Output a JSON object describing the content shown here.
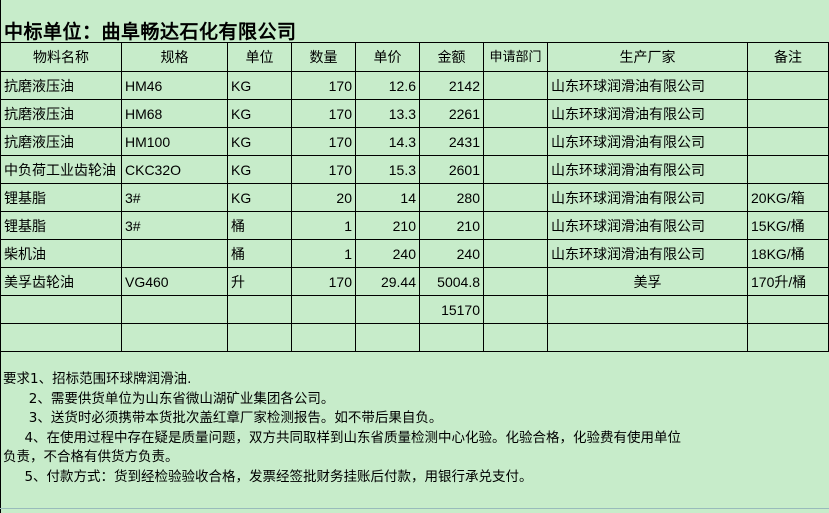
{
  "title": "中标单位：曲阜畅达石化有限公司",
  "headers": [
    "物料名称",
    "规格",
    "单位",
    "数量",
    "单价",
    "金额",
    "申请部门",
    "生产厂家",
    "备注"
  ],
  "rows": [
    [
      "抗磨液压油",
      "HM46",
      "KG",
      "170",
      "12.6",
      "2142",
      "",
      "山东环球润滑油有限公司",
      ""
    ],
    [
      "抗磨液压油",
      "HM68",
      "KG",
      "170",
      "13.3",
      "2261",
      "",
      "山东环球润滑油有限公司",
      ""
    ],
    [
      "抗磨液压油",
      "HM100",
      "KG",
      "170",
      "14.3",
      "2431",
      "",
      "山东环球润滑油有限公司",
      ""
    ],
    [
      "中负荷工业齿轮油",
      "CKC32O",
      "KG",
      "170",
      "15.3",
      "2601",
      "",
      "山东环球润滑油有限公司",
      ""
    ],
    [
      "锂基脂",
      "3#",
      "KG",
      "20",
      "14",
      "280",
      "",
      "山东环球润滑油有限公司",
      "20KG/箱"
    ],
    [
      "锂基脂",
      "3#",
      "桶",
      "1",
      "210",
      "210",
      "",
      "山东环球润滑油有限公司",
      "15KG/桶"
    ],
    [
      "柴机油",
      "",
      "桶",
      "1",
      "240",
      "240",
      "",
      "山东环球润滑油有限公司",
      "18KG/桶"
    ],
    [
      "美孚齿轮油",
      "VG460",
      "升",
      "170",
      "29.44",
      "5004.8",
      "",
      "美孚",
      "170升/桶"
    ]
  ],
  "total": "15170",
  "notes": [
    "要求1、招标范围环球牌润滑油.",
    "      2、需要供货单位为山东省微山湖矿业集团各公司。",
    "      3、送货时必须携带本货批次盖红章厂家检测报告。如不带后果自负。",
    "     4、在使用过程中存在疑是质量问题，双方共同取样到山东省质量检测中心化验。化验合格，化验费有使用单位",
    "负责，不合格有供货方负责。",
    "     5、付款方式：货到经检验验收合格，发票经签批财务挂账后付款，用银行承兑支付。"
  ]
}
